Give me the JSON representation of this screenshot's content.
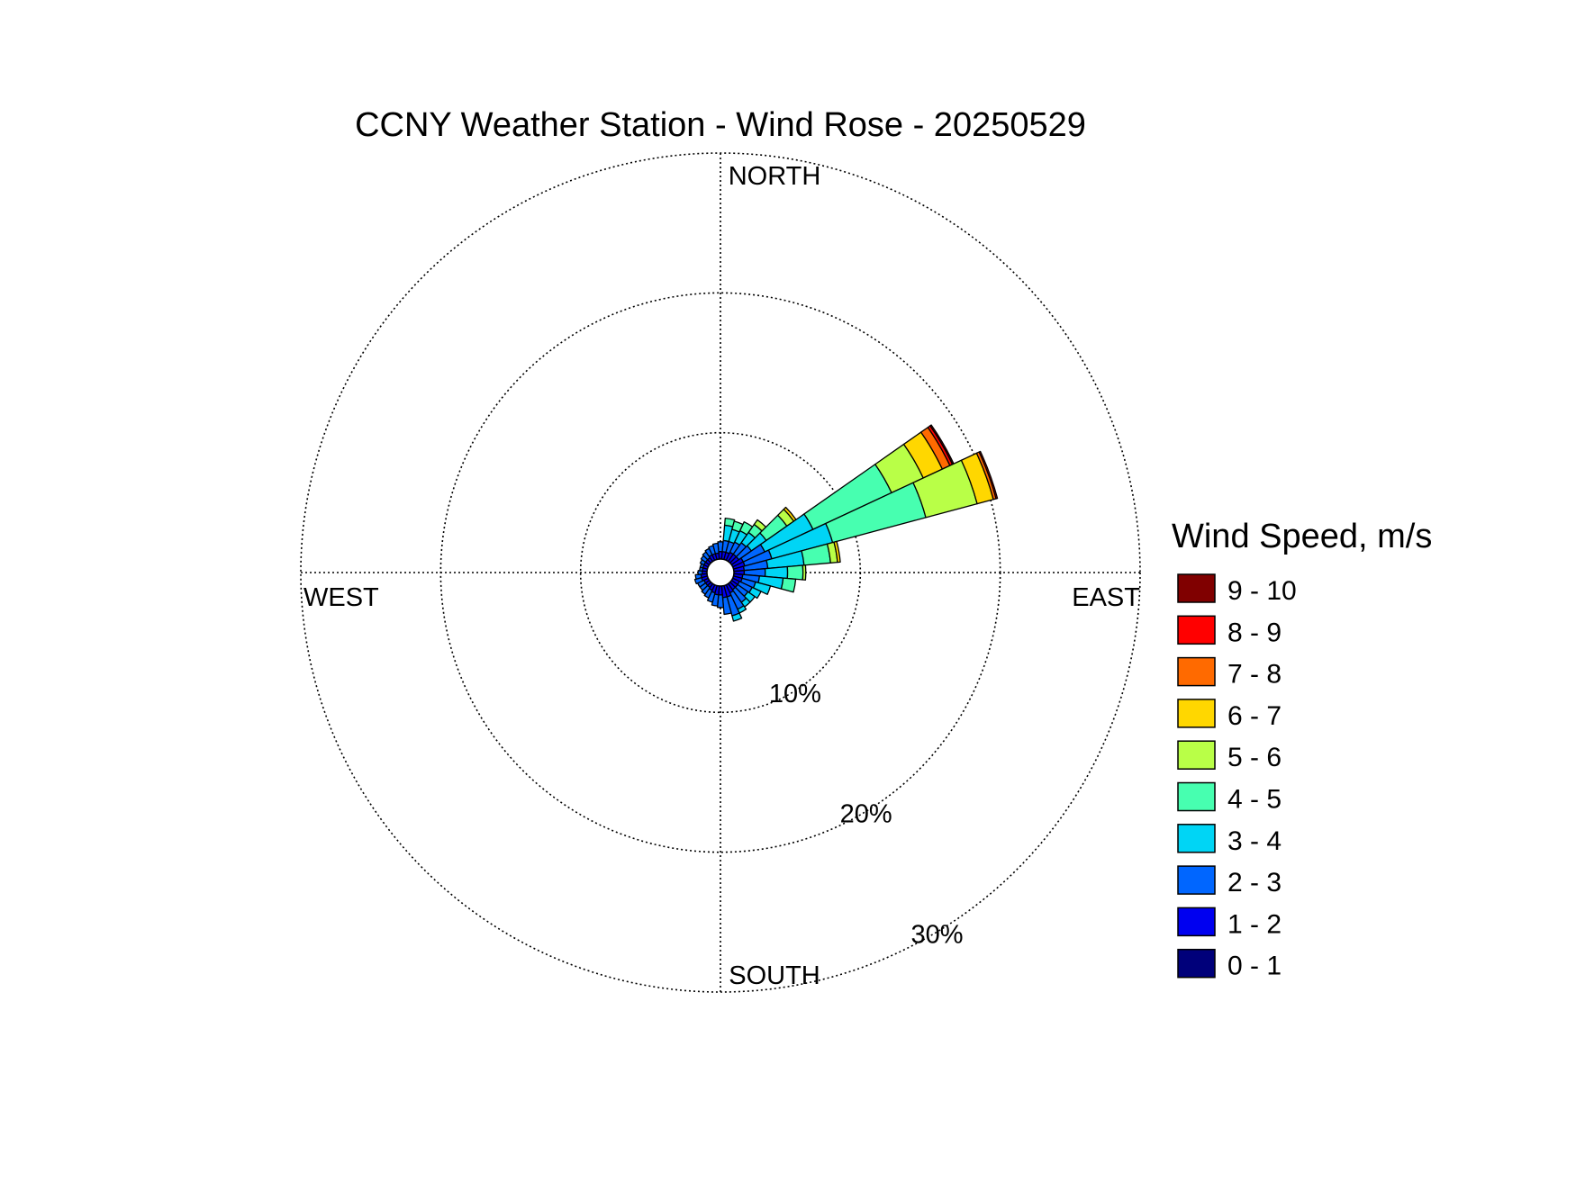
{
  "chart_data": {
    "type": "wind-rose",
    "title": "CCNY Weather Station - Wind Rose - 20250529",
    "directions": {
      "north": "NORTH",
      "east": "EAST",
      "south": "SOUTH",
      "west": "WEST"
    },
    "rings": [
      {
        "value": 10,
        "label": "10%"
      },
      {
        "value": 20,
        "label": "20%"
      },
      {
        "value": 30,
        "label": "30%"
      }
    ],
    "legend": {
      "title": "Wind Speed, m/s",
      "bins": [
        {
          "label": "9 - 10",
          "color": "#800000"
        },
        {
          "label": "8 - 9",
          "color": "#ff0000"
        },
        {
          "label": "7 - 8",
          "color": "#ff6a00"
        },
        {
          "label": "6 - 7",
          "color": "#ffd700"
        },
        {
          "label": "5 - 6",
          "color": "#b9ff47"
        },
        {
          "label": "4 - 5",
          "color": "#47ffb0"
        },
        {
          "label": "3 - 4",
          "color": "#00d5f5"
        },
        {
          "label": "2 - 3",
          "color": "#0066ff"
        },
        {
          "label": "1 - 2",
          "color": "#0000f0"
        },
        {
          "label": "0 - 1",
          "color": "#00007a"
        }
      ]
    },
    "bins_order": [
      "0 - 1",
      "1 - 2",
      "2 - 3",
      "3 - 4",
      "4 - 5",
      "5 - 6",
      "6 - 7",
      "7 - 8",
      "8 - 9",
      "9 - 10"
    ],
    "sectors": [
      {
        "direction_deg": 0,
        "cumulative_percent": [
          0.8,
          1.5,
          2.2
        ]
      },
      {
        "direction_deg": 10,
        "cumulative_percent": [
          0.8,
          1.5,
          2.3,
          3.4,
          3.9
        ]
      },
      {
        "direction_deg": 20,
        "cumulative_percent": [
          0.8,
          1.5,
          2.3,
          3.2,
          3.8
        ]
      },
      {
        "direction_deg": 30,
        "cumulative_percent": [
          0.8,
          1.6,
          2.4,
          3.3,
          4.0
        ]
      },
      {
        "direction_deg": 40,
        "cumulative_percent": [
          0.8,
          1.6,
          2.6,
          3.5,
          4.2,
          4.6
        ]
      },
      {
        "direction_deg": 50,
        "cumulative_percent": [
          0.8,
          1.6,
          2.7,
          4.0,
          5.8,
          6.4,
          6.6
        ]
      },
      {
        "direction_deg": 60,
        "cumulative_percent": [
          0.8,
          1.8,
          3.5,
          7.3,
          13.5,
          16.0,
          17.5,
          18.1,
          18.3,
          18.4
        ]
      },
      {
        "direction_deg": 70,
        "cumulative_percent": [
          0.8,
          1.8,
          3.8,
          8.3,
          15.2,
          19.0,
          20.2,
          20.4,
          20.5
        ]
      },
      {
        "direction_deg": 80,
        "cumulative_percent": [
          0.8,
          1.7,
          3.4,
          6.0,
          7.9,
          8.4,
          8.6
        ]
      },
      {
        "direction_deg": 90,
        "cumulative_percent": [
          0.8,
          1.7,
          3.2,
          4.8,
          5.9,
          6.1
        ]
      },
      {
        "direction_deg": 100,
        "cumulative_percent": [
          0.8,
          1.6,
          2.8,
          4.5,
          5.4
        ]
      },
      {
        "direction_deg": 110,
        "cumulative_percent": [
          0.8,
          1.6,
          2.6,
          3.7
        ]
      },
      {
        "direction_deg": 120,
        "cumulative_percent": [
          0.8,
          1.5,
          2.5,
          3.2
        ]
      },
      {
        "direction_deg": 130,
        "cumulative_percent": [
          0.8,
          1.5,
          2.4,
          3.0
        ]
      },
      {
        "direction_deg": 140,
        "cumulative_percent": [
          0.8,
          1.5,
          2.6,
          3.0
        ]
      },
      {
        "direction_deg": 150,
        "cumulative_percent": [
          0.8,
          1.6,
          2.9,
          3.2
        ]
      },
      {
        "direction_deg": 160,
        "cumulative_percent": [
          0.8,
          1.8,
          3.2,
          3.6
        ]
      },
      {
        "direction_deg": 170,
        "cumulative_percent": [
          0.8,
          1.8,
          3.0
        ]
      },
      {
        "direction_deg": 180,
        "cumulative_percent": [
          0.8,
          1.6,
          2.5
        ]
      },
      {
        "direction_deg": 190,
        "cumulative_percent": [
          0.8,
          1.6,
          2.4
        ]
      },
      {
        "direction_deg": 200,
        "cumulative_percent": [
          0.8,
          1.5,
          2.2
        ]
      },
      {
        "direction_deg": 210,
        "cumulative_percent": [
          0.8,
          1.4,
          2.0
        ]
      },
      {
        "direction_deg": 220,
        "cumulative_percent": [
          0.8,
          1.3,
          1.9
        ]
      },
      {
        "direction_deg": 230,
        "cumulative_percent": [
          0.8,
          1.3,
          1.8
        ]
      },
      {
        "direction_deg": 240,
        "cumulative_percent": [
          0.8,
          1.3,
          1.8
        ]
      },
      {
        "direction_deg": 250,
        "cumulative_percent": [
          0.8,
          1.4,
          1.9
        ]
      },
      {
        "direction_deg": 260,
        "cumulative_percent": [
          0.8,
          1.4,
          1.8
        ]
      },
      {
        "direction_deg": 270,
        "cumulative_percent": [
          0.8,
          1.3,
          1.6
        ]
      },
      {
        "direction_deg": 280,
        "cumulative_percent": [
          0.8,
          1.3,
          1.5
        ]
      },
      {
        "direction_deg": 290,
        "cumulative_percent": [
          0.8,
          1.3,
          1.5
        ]
      },
      {
        "direction_deg": 300,
        "cumulative_percent": [
          0.8,
          1.3,
          1.6
        ]
      },
      {
        "direction_deg": 310,
        "cumulative_percent": [
          0.8,
          1.3,
          1.7
        ]
      },
      {
        "direction_deg": 320,
        "cumulative_percent": [
          0.8,
          1.3,
          1.8
        ]
      },
      {
        "direction_deg": 330,
        "cumulative_percent": [
          0.8,
          1.4,
          1.9
        ]
      },
      {
        "direction_deg": 340,
        "cumulative_percent": [
          0.8,
          1.4,
          2.0
        ]
      },
      {
        "direction_deg": 350,
        "cumulative_percent": [
          0.8,
          1.4,
          2.1
        ]
      }
    ],
    "rlim": [
      0,
      30
    ],
    "grid": true,
    "legend_position": "right"
  }
}
